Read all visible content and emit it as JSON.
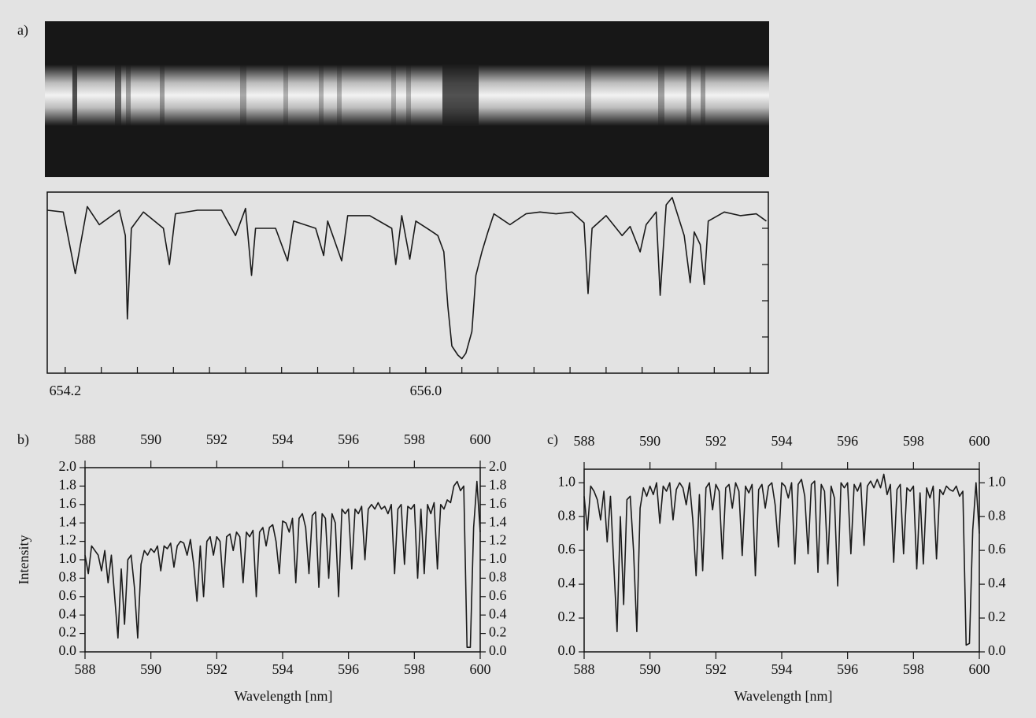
{
  "chart_data": [
    {
      "type": "line",
      "panel_label": "a)",
      "xlim": [
        654.11,
        657.71
      ],
      "ylim": [
        0,
        1
      ],
      "xticks": [
        654.2,
        {
          "value": 656,
          "label": "656.0"
        }
      ],
      "minor_xticks": [
        654.2,
        654.38,
        654.56,
        654.74,
        654.92,
        655.1,
        655.28,
        655.46,
        655.64,
        655.82,
        656.0,
        656.18,
        656.36,
        656.54,
        656.72,
        656.9,
        657.08,
        657.26,
        657.44,
        657.62
      ],
      "minor_yticks": [
        0.2,
        0.4,
        0.6,
        0.8
      ],
      "color": "#1a1a1a",
      "x": [
        654.11,
        654.19,
        654.25,
        654.31,
        654.37,
        654.47,
        654.5,
        654.51,
        654.53,
        654.59,
        654.69,
        654.72,
        654.75,
        654.86,
        654.98,
        655.05,
        655.1,
        655.13,
        655.15,
        655.25,
        655.31,
        655.34,
        655.45,
        655.49,
        655.51,
        655.58,
        655.61,
        655.72,
        655.83,
        655.85,
        655.88,
        655.92,
        655.95,
        656.02,
        656.06,
        656.09,
        656.11,
        656.13,
        656.16,
        656.18,
        656.2,
        656.23,
        656.25,
        656.28,
        656.31,
        656.34,
        656.42,
        656.5,
        656.57,
        656.65,
        656.73,
        656.79,
        656.81,
        656.83,
        656.9,
        656.98,
        657.02,
        657.07,
        657.1,
        657.15,
        657.17,
        657.2,
        657.23,
        657.29,
        657.32,
        657.34,
        657.37,
        657.39,
        657.41,
        657.49,
        657.57,
        657.65,
        657.7
      ],
      "values": [
        0.9,
        0.89,
        0.55,
        0.92,
        0.82,
        0.9,
        0.76,
        0.3,
        0.8,
        0.89,
        0.8,
        0.6,
        0.88,
        0.9,
        0.9,
        0.76,
        0.91,
        0.54,
        0.8,
        0.8,
        0.62,
        0.84,
        0.8,
        0.65,
        0.84,
        0.62,
        0.87,
        0.87,
        0.8,
        0.6,
        0.87,
        0.63,
        0.84,
        0.79,
        0.76,
        0.67,
        0.37,
        0.15,
        0.1,
        0.08,
        0.11,
        0.23,
        0.54,
        0.67,
        0.78,
        0.88,
        0.82,
        0.88,
        0.89,
        0.88,
        0.89,
        0.83,
        0.44,
        0.8,
        0.87,
        0.76,
        0.81,
        0.67,
        0.82,
        0.89,
        0.43,
        0.93,
        0.97,
        0.76,
        0.5,
        0.78,
        0.71,
        0.49,
        0.84,
        0.89,
        0.87,
        0.88,
        0.84
      ]
    },
    {
      "type": "line",
      "panel_label": "b)",
      "xlabel": "Wavelength [nm]",
      "ylabel": "Intensity",
      "xlim": [
        588,
        600
      ],
      "ylim": [
        0,
        2
      ],
      "xticks": [
        588,
        590,
        592,
        594,
        596,
        598,
        600
      ],
      "yticks": [
        {
          "value": 0,
          "label": "0.0"
        },
        0.2,
        0.4,
        0.6,
        0.8,
        {
          "value": 1,
          "label": "1.0"
        },
        1.2,
        1.4,
        1.6,
        1.8,
        {
          "value": 2,
          "label": "2.0"
        }
      ],
      "color": "#1a1a1a",
      "x": [
        588,
        588.1,
        588.2,
        588.3,
        588.4,
        588.5,
        588.6,
        588.7,
        588.8,
        588.9,
        589,
        589.1,
        589.2,
        589.3,
        589.4,
        589.5,
        589.6,
        589.7,
        589.8,
        589.9,
        590,
        590.1,
        590.2,
        590.3,
        590.4,
        590.5,
        590.6,
        590.7,
        590.8,
        590.9,
        591,
        591.1,
        591.2,
        591.3,
        591.4,
        591.5,
        591.6,
        591.7,
        591.8,
        591.9,
        592,
        592.1,
        592.2,
        592.3,
        592.4,
        592.5,
        592.6,
        592.7,
        592.8,
        592.9,
        593,
        593.1,
        593.2,
        593.3,
        593.4,
        593.5,
        593.6,
        593.7,
        593.8,
        593.9,
        594,
        594.1,
        594.2,
        594.3,
        594.4,
        594.5,
        594.6,
        594.7,
        594.8,
        594.9,
        595,
        595.1,
        595.2,
        595.3,
        595.4,
        595.5,
        595.6,
        595.7,
        595.8,
        595.9,
        596,
        596.1,
        596.2,
        596.3,
        596.4,
        596.5,
        596.6,
        596.7,
        596.8,
        596.9,
        597,
        597.1,
        597.2,
        597.3,
        597.4,
        597.5,
        597.6,
        597.7,
        597.8,
        597.9,
        598,
        598.1,
        598.2,
        598.3,
        598.4,
        598.5,
        598.6,
        598.7,
        598.8,
        598.9,
        599,
        599.1,
        599.2,
        599.3,
        599.4,
        599.5,
        599.6,
        599.7,
        599.8,
        599.9,
        600
      ],
      "values": [
        1.05,
        0.85,
        1.15,
        1.1,
        1.05,
        0.88,
        1.1,
        0.75,
        1.05,
        0.6,
        0.15,
        0.9,
        0.3,
        1.0,
        1.05,
        0.7,
        0.15,
        0.95,
        1.1,
        1.05,
        1.12,
        1.08,
        1.15,
        0.88,
        1.15,
        1.12,
        1.18,
        0.92,
        1.15,
        1.2,
        1.18,
        1.05,
        1.22,
        0.95,
        0.55,
        1.15,
        0.6,
        1.2,
        1.25,
        1.05,
        1.25,
        1.2,
        0.7,
        1.25,
        1.28,
        1.1,
        1.3,
        1.25,
        0.75,
        1.3,
        1.25,
        1.32,
        0.6,
        1.3,
        1.35,
        1.15,
        1.35,
        1.38,
        1.2,
        0.85,
        1.42,
        1.4,
        1.3,
        1.45,
        0.75,
        1.45,
        1.5,
        1.35,
        0.85,
        1.48,
        1.52,
        0.7,
        1.5,
        1.45,
        0.8,
        1.5,
        1.4,
        0.6,
        1.55,
        1.5,
        1.55,
        0.9,
        1.55,
        1.5,
        1.58,
        1.0,
        1.55,
        1.6,
        1.55,
        1.62,
        1.55,
        1.58,
        1.5,
        1.6,
        0.85,
        1.55,
        1.6,
        0.95,
        1.58,
        1.55,
        1.6,
        0.8,
        1.55,
        0.85,
        1.6,
        1.5,
        1.62,
        0.9,
        1.6,
        1.55,
        1.65,
        1.62,
        1.8,
        1.85,
        1.75,
        1.8,
        0.05,
        0.05,
        1.35,
        1.85,
        1.3
      ]
    },
    {
      "type": "line",
      "panel_label": "c)",
      "xlabel": "Wavelength [nm]",
      "xlim": [
        588,
        600
      ],
      "ylim": [
        0,
        1.08
      ],
      "xticks": [
        588,
        590,
        592,
        594,
        596,
        598,
        600
      ],
      "yticks": [
        {
          "value": 0,
          "label": "0.0"
        },
        0.2,
        0.4,
        0.6,
        0.8,
        {
          "value": 1,
          "label": "1.0"
        }
      ],
      "color": "#1a1a1a",
      "x": [
        588,
        588.1,
        588.2,
        588.3,
        588.4,
        588.5,
        588.6,
        588.7,
        588.8,
        588.9,
        589,
        589.1,
        589.2,
        589.3,
        589.4,
        589.5,
        589.6,
        589.7,
        589.8,
        589.9,
        590,
        590.1,
        590.2,
        590.3,
        590.4,
        590.5,
        590.6,
        590.7,
        590.8,
        590.9,
        591,
        591.1,
        591.2,
        591.3,
        591.4,
        591.5,
        591.6,
        591.7,
        591.8,
        591.9,
        592,
        592.1,
        592.2,
        592.3,
        592.4,
        592.5,
        592.6,
        592.7,
        592.8,
        592.9,
        593,
        593.1,
        593.2,
        593.3,
        593.4,
        593.5,
        593.6,
        593.7,
        593.8,
        593.9,
        594,
        594.1,
        594.2,
        594.3,
        594.4,
        594.5,
        594.6,
        594.7,
        594.8,
        594.9,
        595,
        595.1,
        595.2,
        595.3,
        595.4,
        595.5,
        595.6,
        595.7,
        595.8,
        595.9,
        596,
        596.1,
        596.2,
        596.3,
        596.4,
        596.5,
        596.6,
        596.7,
        596.8,
        596.9,
        597,
        597.1,
        597.2,
        597.3,
        597.4,
        597.5,
        597.6,
        597.7,
        597.8,
        597.9,
        598,
        598.1,
        598.2,
        598.3,
        598.4,
        598.5,
        598.6,
        598.7,
        598.8,
        598.9,
        599,
        599.1,
        599.2,
        599.3,
        599.4,
        599.5,
        599.6,
        599.7,
        599.8,
        599.9,
        600
      ],
      "values": [
        0.92,
        0.72,
        0.98,
        0.95,
        0.9,
        0.78,
        0.95,
        0.65,
        0.92,
        0.52,
        0.12,
        0.8,
        0.28,
        0.9,
        0.92,
        0.6,
        0.12,
        0.85,
        0.97,
        0.92,
        0.98,
        0.93,
        1.0,
        0.76,
        0.98,
        0.95,
        1.0,
        0.78,
        0.96,
        1.0,
        0.97,
        0.87,
        1.0,
        0.78,
        0.45,
        0.93,
        0.48,
        0.97,
        1.0,
        0.84,
        0.99,
        0.95,
        0.55,
        0.97,
        0.99,
        0.85,
        1.0,
        0.95,
        0.57,
        0.98,
        0.94,
        0.99,
        0.45,
        0.96,
        0.99,
        0.85,
        0.98,
        1.0,
        0.87,
        0.62,
        1.0,
        0.98,
        0.91,
        1.0,
        0.52,
        0.99,
        1.02,
        0.92,
        0.58,
        0.99,
        1.01,
        0.47,
        0.99,
        0.95,
        0.52,
        0.98,
        0.91,
        0.39,
        1.0,
        0.97,
        1.0,
        0.58,
        0.99,
        0.95,
        1.0,
        0.63,
        0.98,
        1.01,
        0.97,
        1.02,
        0.97,
        1.05,
        0.93,
        0.99,
        0.53,
        0.96,
        0.99,
        0.58,
        0.97,
        0.95,
        0.98,
        0.49,
        0.94,
        0.52,
        0.97,
        0.91,
        0.98,
        0.55,
        0.96,
        0.93,
        0.98,
        0.96,
        0.95,
        0.98,
        0.92,
        0.95,
        0.04,
        0.05,
        0.72,
        1.0,
        0.7
      ]
    }
  ]
}
